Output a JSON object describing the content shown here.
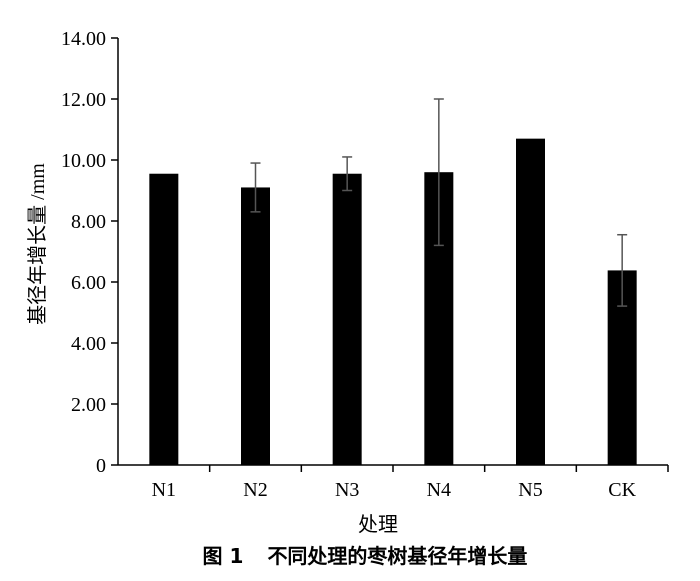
{
  "chart_data": {
    "type": "bar",
    "categories": [
      "N1",
      "N2",
      "N3",
      "N4",
      "N5",
      "CK"
    ],
    "values": [
      9.55,
      9.1,
      9.55,
      9.6,
      10.7,
      6.38
    ],
    "error_bars": [
      0.0,
      0.8,
      0.55,
      2.4,
      0.05,
      1.17
    ],
    "xlabel": "处理",
    "ylabel": "基径年增长量 /mm",
    "ylim": [
      0,
      14
    ],
    "yticks": [
      "0",
      "2.00",
      "4.00",
      "6.00",
      "8.00",
      "10.00",
      "12.00",
      "14.00"
    ],
    "grid": false,
    "legend": "none",
    "bar_color": "#000000"
  },
  "caption": {
    "number": "图 1",
    "text": "不同处理的枣树基径年增长量"
  }
}
